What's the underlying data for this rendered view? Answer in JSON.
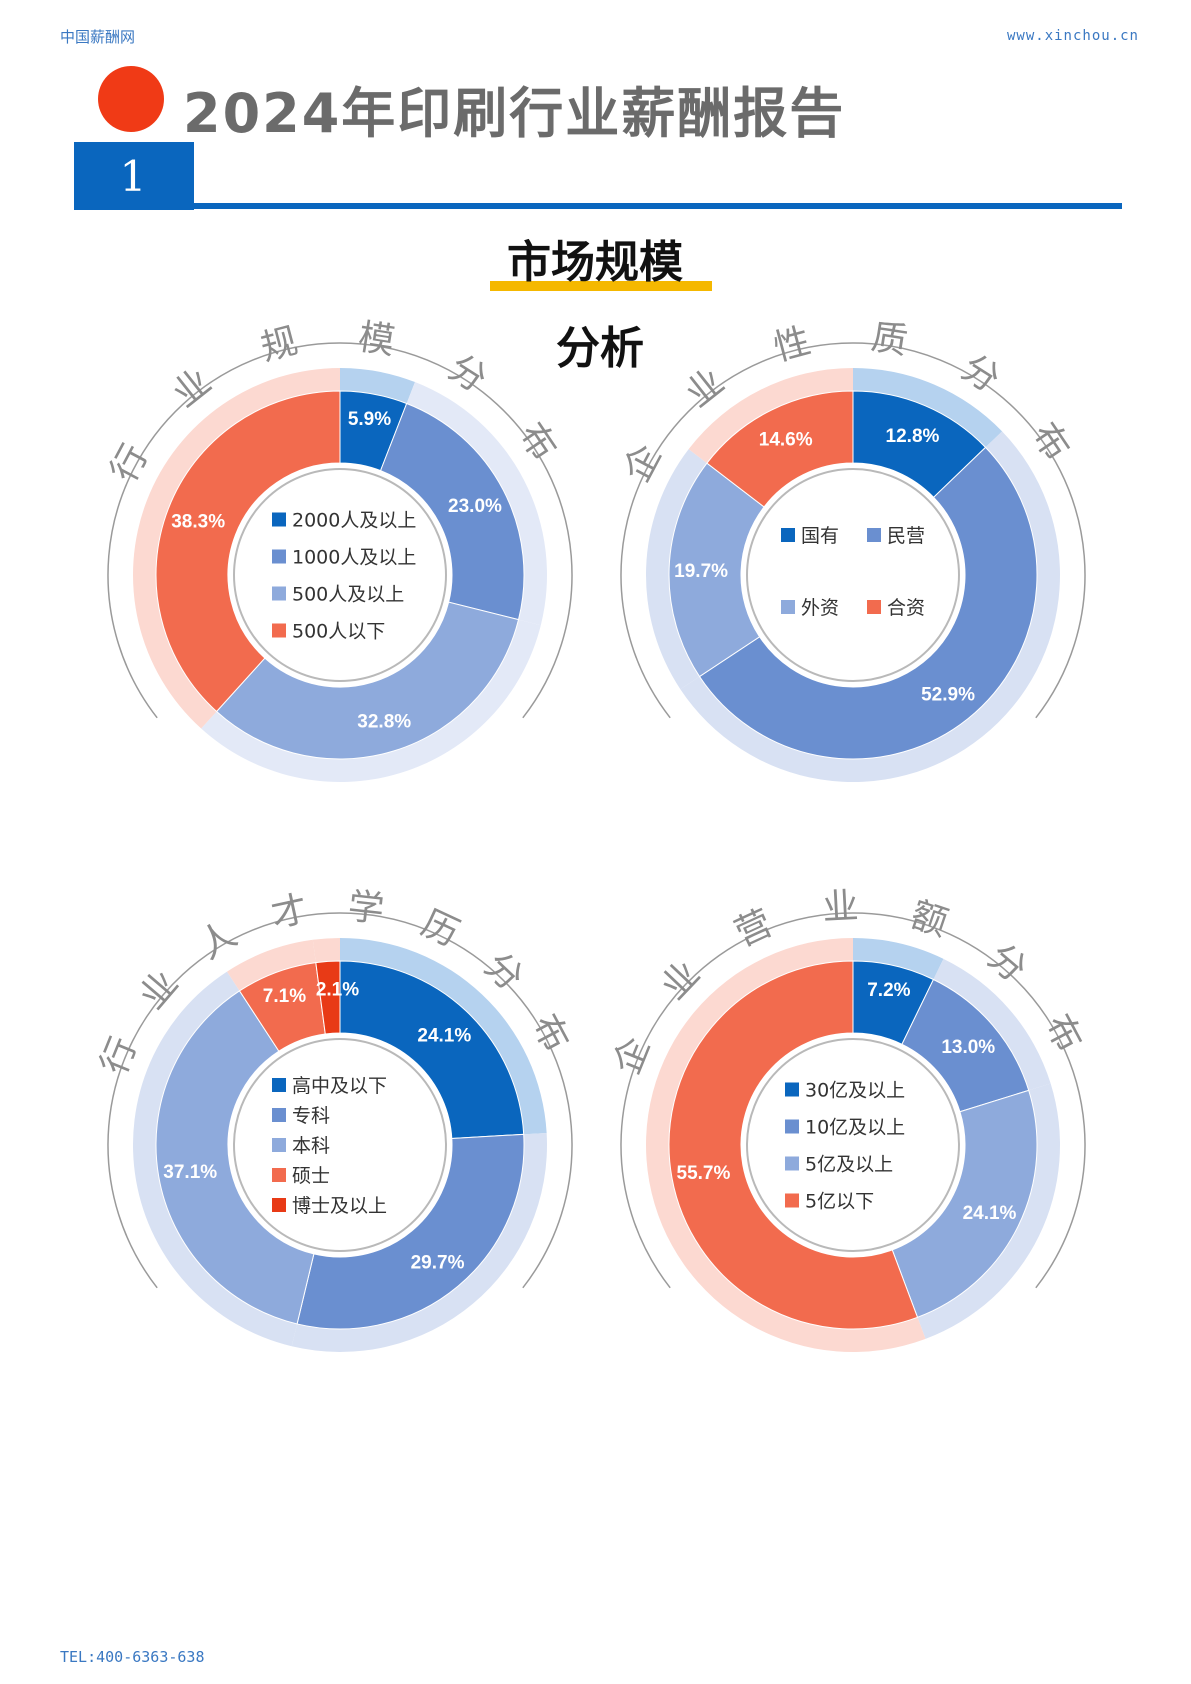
{
  "header": {
    "site": "中国薪酬网",
    "url": "www.xinchou.cn"
  },
  "report_title": "2024年印刷行业薪酬报告",
  "section_number": "1",
  "section_title": "市场规模",
  "section_subtitle": "分析",
  "footer": {
    "tel": "TEL:400-6363-638"
  },
  "chart_data": [
    {
      "type": "pie",
      "title": "行业规模分布",
      "categories": [
        "2000人及以上",
        "1000人及以上",
        "500人及以上",
        "500人以下"
      ],
      "values": [
        5.9,
        23.0,
        32.8,
        38.3
      ],
      "value_labels": [
        "5.9%",
        "23.0%",
        "32.8%",
        "38.3%"
      ],
      "colors": [
        "#0a66be",
        "#6a8fd0",
        "#8eaadc",
        "#f26b4e"
      ],
      "ring_colors": [
        "#b5d2ef",
        "#e3e9f7",
        "#e3e9f7",
        "#fcd9d1"
      ],
      "legend": "center"
    },
    {
      "type": "pie",
      "title": "企业性质分布",
      "categories": [
        "国有",
        "民营",
        "外资",
        "合资"
      ],
      "values": [
        12.8,
        52.9,
        19.7,
        14.6
      ],
      "value_labels": [
        "12.8%",
        "52.9%",
        "19.7%",
        "14.6%"
      ],
      "colors": [
        "#0a66be",
        "#6a8fd0",
        "#8eaadc",
        "#f26b4e"
      ],
      "ring_colors": [
        "#b5d2ef",
        "#d8e1f3",
        "#d8e1f3",
        "#fcd9d1"
      ],
      "legend": "center"
    },
    {
      "type": "pie",
      "title": "行业人才学历分布",
      "categories": [
        "高中及以下",
        "专科",
        "本科",
        "硕士",
        "博士及以上"
      ],
      "values": [
        24.1,
        29.7,
        37.1,
        7.1,
        2.1
      ],
      "value_labels": [
        "24.1%",
        "29.7%",
        "37.1%",
        "7.1%",
        "2.1%"
      ],
      "colors": [
        "#0a66be",
        "#6a8fd0",
        "#8eaadc",
        "#f26b4e",
        "#e83a16"
      ],
      "ring_colors": [
        "#b5d2ef",
        "#d8e1f3",
        "#d8e1f3",
        "#fcd9d1",
        "#fcd9d1"
      ],
      "legend": "center"
    },
    {
      "type": "pie",
      "title": "企业营业额分布",
      "categories": [
        "30亿及以上",
        "10亿及以上",
        "5亿及以上",
        "5亿以下"
      ],
      "values": [
        7.2,
        13.0,
        24.1,
        55.7
      ],
      "value_labels": [
        "7.2%",
        "13.0%",
        "24.1%",
        "55.7%"
      ],
      "colors": [
        "#0a66be",
        "#6a8fd0",
        "#8eaadc",
        "#f26b4e"
      ],
      "ring_colors": [
        "#b5d2ef",
        "#d8e1f3",
        "#d8e1f3",
        "#fcd9d1"
      ],
      "legend": "center"
    }
  ]
}
